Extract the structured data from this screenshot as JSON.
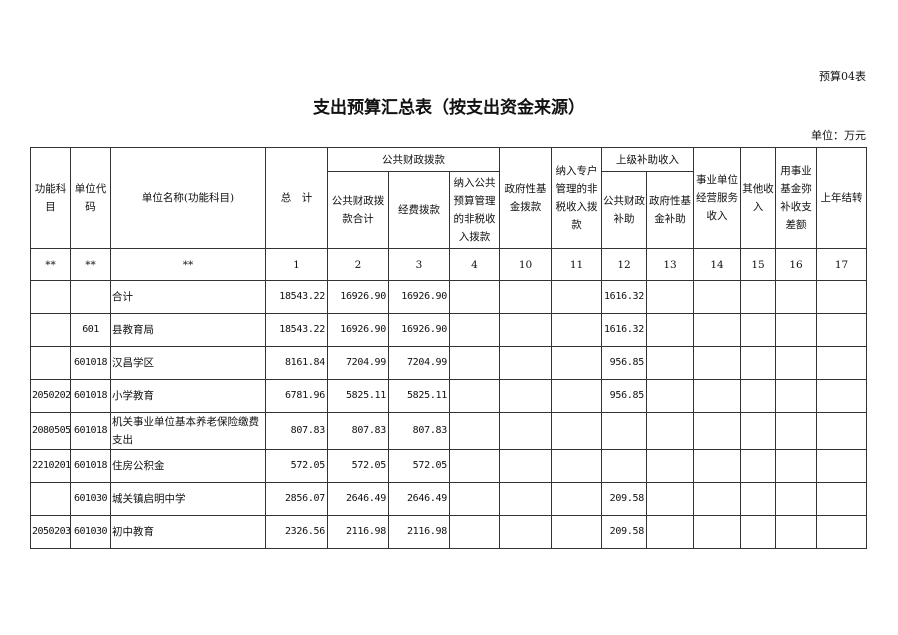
{
  "table_tag": "预算04表",
  "title": "支出预算汇总表（按支出资金来源）",
  "unit": "单位：万元",
  "headers": {
    "func_subject": "功能科目",
    "unit_code": "单位代码",
    "unit_name": "单位名称(功能科目)",
    "total": "总　计",
    "public_fiscal": "公共财政拨款",
    "public_fiscal_total": "公共财政拨款合计",
    "funding": "经费拨款",
    "nontax_budget": "纳入公共预算管理的非税收入拨款",
    "gov_fund": "政府性基金拨款",
    "nontax_special": "纳入专户管理的非税收入拨款",
    "superior_subsidy": "上级补助收入",
    "superior_public": "公共财政补助",
    "superior_gov_fund": "政府性基金补助",
    "business_income": "事业单位经营服务收入",
    "other_income": "其他收入",
    "fund_offset": "用事业基金弥补收支差额",
    "carryover": "上年结转"
  },
  "index_row": [
    "**",
    "**",
    "**",
    "1",
    "2",
    "3",
    "4",
    "10",
    "11",
    "12",
    "13",
    "14",
    "15",
    "16",
    "17"
  ],
  "rows": [
    {
      "func": "",
      "code": "",
      "name": "合计",
      "total": "18543.22",
      "pf_total": "16926.90",
      "funding": "16926.90",
      "sup_public": "1616.32"
    },
    {
      "func": "",
      "code": "601",
      "name": "县教育局",
      "total": "18543.22",
      "pf_total": "16926.90",
      "funding": "16926.90",
      "sup_public": "1616.32"
    },
    {
      "func": "",
      "code": "601018",
      "name": "汉昌学区",
      "total": "8161.84",
      "pf_total": "7204.99",
      "funding": "7204.99",
      "sup_public": "956.85"
    },
    {
      "func": "2050202",
      "code": "601018",
      "name": "小学教育",
      "total": "6781.96",
      "pf_total": "5825.11",
      "funding": "5825.11",
      "sup_public": "956.85"
    },
    {
      "func": "2080505",
      "code": "601018",
      "name": "机关事业单位基本养老保险缴费支出",
      "total": "807.83",
      "pf_total": "807.83",
      "funding": "807.83",
      "sup_public": ""
    },
    {
      "func": "2210201",
      "code": "601018",
      "name": "住房公积金",
      "total": "572.05",
      "pf_total": "572.05",
      "funding": "572.05",
      "sup_public": ""
    },
    {
      "func": "",
      "code": "601030",
      "name": "城关镇启明中学",
      "total": "2856.07",
      "pf_total": "2646.49",
      "funding": "2646.49",
      "sup_public": "209.58"
    },
    {
      "func": "2050203",
      "code": "601030",
      "name": "初中教育",
      "total": "2326.56",
      "pf_total": "2116.98",
      "funding": "2116.98",
      "sup_public": "209.58"
    }
  ]
}
